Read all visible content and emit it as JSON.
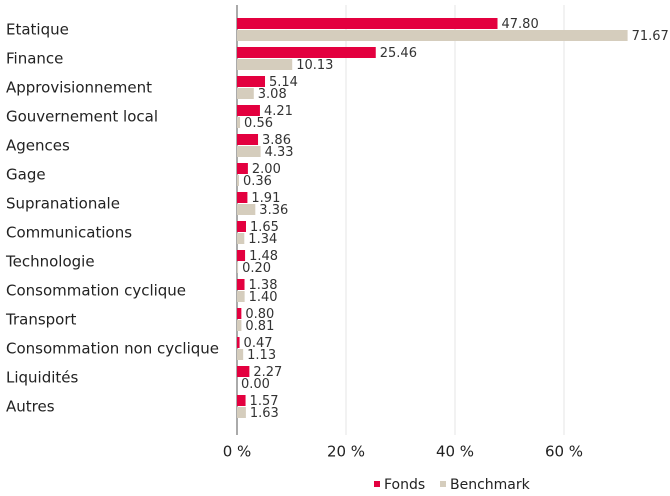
{
  "chart_data": {
    "type": "bar",
    "orientation": "horizontal",
    "categories": [
      "Etatique",
      "Finance",
      "Approvisionnement",
      "Gouvernement local",
      "Agences",
      "Gage",
      "Supranationale",
      "Communications",
      "Technologie",
      "Consommation cyclique",
      "Transport",
      "Consommation non cyclique",
      "Liquidités",
      "Autres"
    ],
    "series": [
      {
        "name": "Fonds",
        "color": "#e3003f",
        "values": [
          47.8,
          25.46,
          5.14,
          4.21,
          3.86,
          2.0,
          1.91,
          1.65,
          1.48,
          1.38,
          0.8,
          0.47,
          2.27,
          1.57
        ],
        "value_labels": [
          "47.80",
          "25.46",
          "5.14",
          "4.21",
          "3.86",
          "2.00",
          "1.91",
          "1.65",
          "1.48",
          "1.38",
          "0.80",
          "0.47",
          "2.27",
          "1.57"
        ]
      },
      {
        "name": "Benchmark",
        "color": "#d5cdbd",
        "values": [
          71.67,
          10.13,
          3.08,
          0.56,
          4.33,
          0.36,
          3.36,
          1.34,
          0.2,
          1.4,
          0.81,
          1.13,
          0.0,
          1.63
        ],
        "value_labels": [
          "71.67",
          "10.13",
          "3.08",
          "0.56",
          "4.33",
          "0.36",
          "3.36",
          "1.34",
          "0.20",
          "1.40",
          "0.81",
          "1.13",
          "0.00",
          "1.63"
        ]
      }
    ],
    "xlim": [
      0,
      80
    ],
    "xticks": [
      {
        "value": 0,
        "label": "0 %"
      },
      {
        "value": 20,
        "label": "20 %"
      },
      {
        "value": 40,
        "label": "40 %"
      },
      {
        "value": 60,
        "label": "60 %"
      }
    ],
    "grid": true,
    "legend": "bottom"
  }
}
